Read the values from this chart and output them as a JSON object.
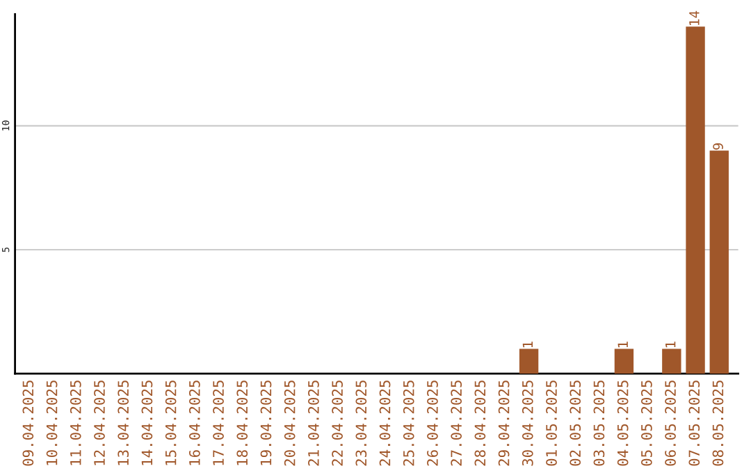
{
  "chart_data": {
    "type": "bar",
    "categories": [
      "09.04.2025",
      "10.04.2025",
      "11.04.2025",
      "12.04.2025",
      "13.04.2025",
      "14.04.2025",
      "15.04.2025",
      "16.04.2025",
      "17.04.2025",
      "18.04.2025",
      "19.04.2025",
      "20.04.2025",
      "21.04.2025",
      "22.04.2025",
      "23.04.2025",
      "24.04.2025",
      "25.04.2025",
      "26.04.2025",
      "27.04.2025",
      "28.04.2025",
      "29.04.2025",
      "30.04.2025",
      "01.05.2025",
      "02.05.2025",
      "03.05.2025",
      "04.05.2025",
      "05.05.2025",
      "06.05.2025",
      "07.05.2025",
      "08.05.2025"
    ],
    "values": [
      0,
      0,
      0,
      0,
      0,
      0,
      0,
      0,
      0,
      0,
      0,
      0,
      0,
      0,
      0,
      0,
      0,
      0,
      0,
      0,
      0,
      1,
      0,
      0,
      0,
      1,
      0,
      1,
      14,
      9
    ],
    "value_labels": [
      null,
      null,
      null,
      null,
      null,
      null,
      null,
      null,
      null,
      null,
      null,
      null,
      null,
      null,
      null,
      null,
      null,
      null,
      null,
      null,
      null,
      "1",
      null,
      null,
      null,
      "1",
      null,
      "1",
      "14",
      "9"
    ],
    "color": "#a0572a",
    "ylim": [
      0,
      14.5
    ],
    "yticks": [
      5,
      10
    ],
    "grid": "y",
    "legend": false
  }
}
